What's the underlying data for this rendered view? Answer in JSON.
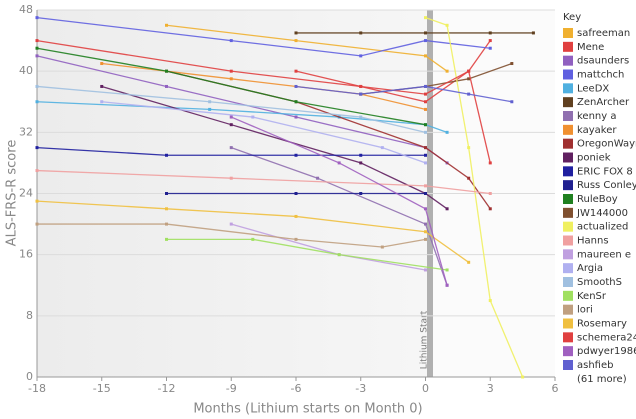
{
  "chart_data": {
    "type": "line",
    "xlabel": "Months (Lithium starts on Month 0)",
    "ylabel": "ALS-FRS-R score",
    "xlim": [
      -18,
      6
    ],
    "xticks": [
      -18,
      -15,
      -12,
      -9,
      -6,
      -3,
      0,
      3,
      6
    ],
    "ylim": [
      0,
      48
    ],
    "yticks": [
      0,
      8,
      16,
      24,
      32,
      40,
      48
    ],
    "grid": true,
    "annotation": "Lithium Start",
    "legend_title": "Key",
    "legend_more": "(61 more)",
    "series": [
      {
        "name": "safreeman",
        "color": "#f0b030",
        "x": [
          -12,
          -6,
          0,
          1
        ],
        "values": [
          46,
          44,
          42,
          40
        ]
      },
      {
        "name": "Mene",
        "color": "#e04040",
        "x": [
          -18,
          -9,
          -3,
          0,
          2,
          3
        ],
        "values": [
          44,
          40,
          38,
          36,
          40,
          44
        ]
      },
      {
        "name": "dsaunders",
        "color": "#9060c0",
        "x": [
          -18,
          -12,
          -6,
          0,
          1
        ],
        "values": [
          42,
          38,
          34,
          30,
          28
        ]
      },
      {
        "name": "mattchch",
        "color": "#6060e0",
        "x": [
          -18,
          -9,
          -3,
          0,
          3
        ],
        "values": [
          47,
          44,
          42,
          44,
          43
        ]
      },
      {
        "name": "LeeDX",
        "color": "#50b0e0",
        "x": [
          -18,
          -10,
          -4,
          0,
          1
        ],
        "values": [
          36,
          35,
          34,
          33,
          32
        ]
      },
      {
        "name": "ZenArcher",
        "color": "#604020",
        "x": [
          -6,
          -3,
          0,
          3,
          5
        ],
        "values": [
          45,
          45,
          45,
          45,
          45
        ]
      },
      {
        "name": "kenny a",
        "color": "#9070b0",
        "x": [
          -9,
          -5,
          0,
          1
        ],
        "values": [
          30,
          26,
          20,
          12
        ]
      },
      {
        "name": "kayaker",
        "color": "#f09030",
        "x": [
          -15,
          -9,
          -3,
          0
        ],
        "values": [
          41,
          39,
          37,
          35
        ]
      },
      {
        "name": "OregonWayn",
        "color": "#a03030",
        "x": [
          -12,
          -6,
          0,
          2,
          3
        ],
        "values": [
          40,
          36,
          30,
          26,
          22
        ]
      },
      {
        "name": "poniek",
        "color": "#602060",
        "x": [
          -15,
          -9,
          -3,
          0,
          1
        ],
        "values": [
          38,
          33,
          28,
          24,
          22
        ]
      },
      {
        "name": "ERIC FOX 8",
        "color": "#2020a0",
        "x": [
          -18,
          -12,
          -6,
          -3,
          0
        ],
        "values": [
          30,
          29,
          29,
          29,
          29
        ]
      },
      {
        "name": "Russ Conley",
        "color": "#202090",
        "x": [
          -12,
          -6,
          -3,
          0
        ],
        "values": [
          24,
          24,
          24,
          24
        ]
      },
      {
        "name": "RuleBoy",
        "color": "#208020",
        "x": [
          -18,
          -12,
          -6,
          0
        ],
        "values": [
          43,
          40,
          36,
          33
        ]
      },
      {
        "name": "JW144000",
        "color": "#805030",
        "x": [
          -3,
          0,
          2,
          4
        ],
        "values": [
          37,
          38,
          39,
          41
        ]
      },
      {
        "name": "actualized",
        "color": "#f0f060",
        "x": [
          0,
          1,
          2,
          3,
          4.5
        ],
        "values": [
          47,
          46,
          30,
          10,
          0
        ]
      },
      {
        "name": "Hanns",
        "color": "#f0a0a0",
        "x": [
          -18,
          -9,
          0,
          3
        ],
        "values": [
          27,
          26,
          25,
          24
        ]
      },
      {
        "name": "maureen e",
        "color": "#c0a0e0",
        "x": [
          -9,
          -4,
          0
        ],
        "values": [
          20,
          16,
          14
        ]
      },
      {
        "name": "Argia",
        "color": "#b0b0f0",
        "x": [
          -15,
          -8,
          -2,
          0
        ],
        "values": [
          36,
          34,
          30,
          28
        ]
      },
      {
        "name": "SmoothS",
        "color": "#a0c0e0",
        "x": [
          -18,
          -10,
          -3,
          0
        ],
        "values": [
          38,
          36,
          34,
          32
        ]
      },
      {
        "name": "KenSr",
        "color": "#a0e060",
        "x": [
          -12,
          -8,
          -4,
          1
        ],
        "values": [
          18,
          18,
          16,
          14
        ]
      },
      {
        "name": "lori",
        "color": "#c0a080",
        "x": [
          -18,
          -12,
          -6,
          -2,
          0
        ],
        "values": [
          20,
          20,
          18,
          17,
          18
        ]
      },
      {
        "name": "Rosemary",
        "color": "#f0c040",
        "x": [
          -18,
          -12,
          -6,
          0,
          2
        ],
        "values": [
          23,
          22,
          21,
          19,
          15
        ]
      },
      {
        "name": "schemera24",
        "color": "#e04040",
        "x": [
          -6,
          -3,
          0,
          2,
          3
        ],
        "values": [
          40,
          38,
          37,
          40,
          28
        ]
      },
      {
        "name": "pdwyer1986",
        "color": "#a060c0",
        "x": [
          -9,
          -4,
          0,
          1
        ],
        "values": [
          34,
          28,
          22,
          12
        ]
      },
      {
        "name": "ashfieb",
        "color": "#6060d0",
        "x": [
          -6,
          -3,
          0,
          2,
          4
        ],
        "values": [
          38,
          37,
          38,
          37,
          36
        ]
      }
    ]
  }
}
